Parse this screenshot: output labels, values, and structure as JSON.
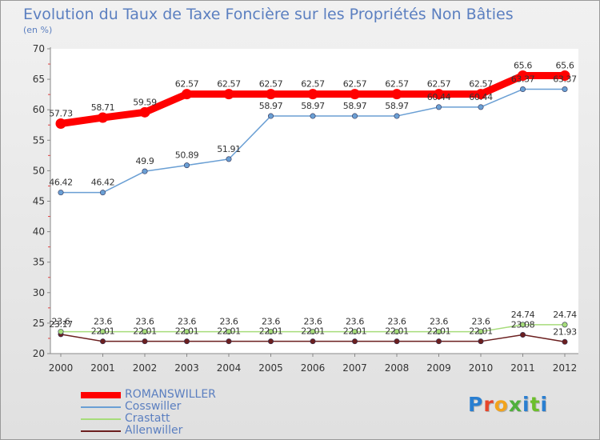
{
  "title": "Evolution du Taux de Taxe Foncière sur les Propriétés Non Bâties",
  "unit_label": "(en %)",
  "brand": {
    "text": "Proxiti",
    "colors": [
      "#2a7fd1",
      "#e6452a",
      "#f2a31c",
      "#4fb03c",
      "#2a7fd1",
      "#6cbf2b"
    ]
  },
  "chart_data": {
    "type": "line",
    "title": "Evolution du Taux de Taxe Foncière sur les Propriétés Non Bâties",
    "ylabel": "(en %)",
    "xlabel": "",
    "ylim": [
      20,
      70
    ],
    "yticks": [
      20,
      25,
      30,
      35,
      40,
      45,
      50,
      55,
      60,
      65,
      70
    ],
    "grid": false,
    "legend_position": "bottom-left",
    "categories": [
      "2000",
      "2001",
      "2002",
      "2003",
      "2004",
      "2005",
      "2006",
      "2007",
      "2008",
      "2009",
      "2010",
      "2011",
      "2012"
    ],
    "series": [
      {
        "name": "ROMANSWILLER",
        "color": "#ff0000",
        "emphasis": true,
        "values": [
          57.73,
          58.71,
          59.59,
          62.57,
          62.57,
          62.57,
          62.57,
          62.57,
          62.57,
          62.57,
          62.57,
          65.6,
          65.6
        ],
        "labels": [
          "57.73",
          "58.71",
          "59.59",
          "62.57",
          "62.57",
          "62.57",
          "62.57",
          "62.57",
          "62.57",
          "62.57",
          "62.57",
          "65.6",
          "65.6"
        ]
      },
      {
        "name": "Cosswiller",
        "color": "#6a9fd4",
        "values": [
          46.42,
          46.42,
          49.9,
          50.89,
          51.91,
          58.97,
          58.97,
          58.97,
          58.97,
          60.44,
          60.44,
          63.37,
          63.37
        ],
        "labels": [
          "46.42",
          "46.42",
          "49.9",
          "50.89",
          "51.91",
          "58.97",
          "58.97",
          "58.97",
          "58.97",
          "60.44",
          "60.44",
          "63.37",
          "63.37"
        ]
      },
      {
        "name": "Crastatt",
        "color": "#a6dc7a",
        "values": [
          23.6,
          23.6,
          23.6,
          23.6,
          23.6,
          23.6,
          23.6,
          23.6,
          23.6,
          23.6,
          23.6,
          24.74,
          24.74
        ],
        "labels": [
          "23.6",
          "23.6",
          "23.6",
          "23.6",
          "23.6",
          "23.6",
          "23.6",
          "23.6",
          "23.6",
          "23.6",
          "23.6",
          "24.74",
          "24.74"
        ]
      },
      {
        "name": "Allenwiller",
        "color": "#6b1f1f",
        "values": [
          23.17,
          22.01,
          22.01,
          22.01,
          22.01,
          22.01,
          22.01,
          22.01,
          22.01,
          22.01,
          22.01,
          23.08,
          21.93
        ],
        "labels": [
          "23.17",
          "22.01",
          "22.01",
          "22.01",
          "22.01",
          "22.01",
          "22.01",
          "22.01",
          "22.01",
          "22.01",
          "22.01",
          "23.08",
          "21.93"
        ]
      }
    ]
  }
}
